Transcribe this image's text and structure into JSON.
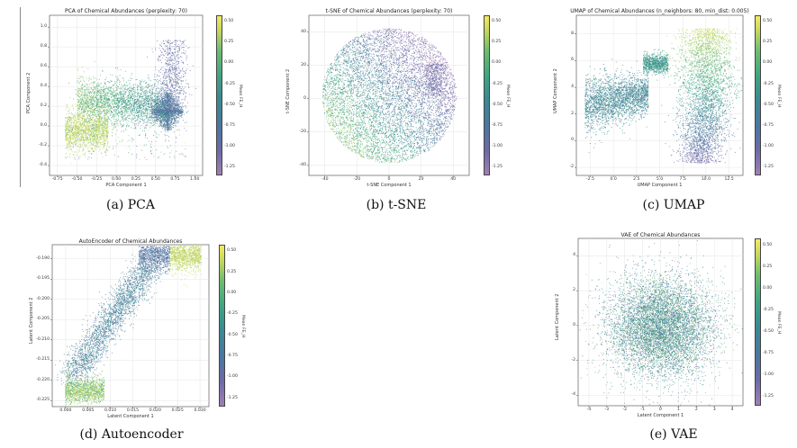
{
  "colorbar": {
    "label": "Mean FE_H",
    "ticks": [
      "0.50",
      "0.25",
      "0.00",
      "-0.25",
      "-0.50",
      "-0.75",
      "-1.00",
      "-1.25"
    ],
    "values": [
      0.5,
      0.25,
      0.0,
      -0.25,
      -0.5,
      -0.75,
      -1.0,
      -1.25
    ],
    "range": [
      -1.35,
      0.58
    ],
    "colors": [
      "#a07fb2",
      "#6d6aa8",
      "#4b76a0",
      "#3a8a92",
      "#3ea482",
      "#6cbd6f",
      "#c2d65c",
      "#f5ea60"
    ]
  },
  "chart_data": [
    {
      "id": "pca",
      "type": "scatter",
      "title": "PCA of Chemical Abundances (perplexity: 70)",
      "xlabel": "PCA Component 1",
      "ylabel": "PCA Component 2",
      "xticks": [
        "-0.75",
        "-0.50",
        "-0.25",
        "0.00",
        "0.25",
        "0.50",
        "0.75",
        "1.00"
      ],
      "xtick_values": [
        -0.75,
        -0.5,
        -0.25,
        0.0,
        0.25,
        0.5,
        0.75,
        1.0
      ],
      "yticks": [
        "1.0",
        "0.8",
        "0.6",
        "0.4",
        "0.2",
        "0.0",
        "-0.2",
        "-0.4"
      ],
      "ytick_values": [
        1.0,
        0.8,
        0.6,
        0.4,
        0.2,
        0.0,
        -0.2,
        -0.4
      ],
      "xlim": [
        -0.85,
        1.1
      ],
      "ylim": [
        -0.5,
        1.12
      ],
      "grid": true,
      "caption": "(a) PCA"
    },
    {
      "id": "tsne",
      "type": "scatter",
      "title": "t-SNE of Chemical Abundances (perplexity: 70)",
      "xlabel": "t-SNE Component 1",
      "ylabel": "t-SNE Component 2",
      "xticks": [
        "-40",
        "-20",
        "0",
        "20",
        "40"
      ],
      "xtick_values": [
        -40,
        -20,
        0,
        20,
        40
      ],
      "yticks": [
        "40",
        "20",
        "0",
        "-20",
        "-40"
      ],
      "ytick_values": [
        40,
        20,
        0,
        -20,
        -40
      ],
      "xlim": [
        -50,
        50
      ],
      "ylim": [
        -46,
        50
      ],
      "grid": true,
      "caption": "(b) t-SNE"
    },
    {
      "id": "umap",
      "type": "scatter",
      "title": "UMAP of Chemical Abundances (n_neighbors: 80, min_dist: 0.005)",
      "xlabel": "UMAP Component 1",
      "ylabel": "UMAP Component 2",
      "xticks": [
        "-2.5",
        "0.0",
        "2.5",
        "5.0",
        "7.5",
        "10.0",
        "12.5"
      ],
      "xtick_values": [
        -2.5,
        0,
        2.5,
        5,
        7.5,
        10,
        12.5
      ],
      "yticks": [
        "8",
        "6",
        "4",
        "2",
        "0",
        "-2"
      ],
      "ytick_values": [
        8,
        6,
        4,
        2,
        0,
        -2
      ],
      "xlim": [
        -4,
        14
      ],
      "ylim": [
        -2.6,
        9.4
      ],
      "grid": true,
      "caption": "(c) UMAP"
    },
    {
      "id": "autoencoder",
      "type": "scatter",
      "title": "AutoEncoder of Chemical Abundances",
      "xlabel": "Latent Component 1",
      "ylabel": "Latent Component 2",
      "xticks": [
        "0.000",
        "0.005",
        "0.010",
        "0.015",
        "0.020",
        "0.025",
        "0.030"
      ],
      "xtick_values": [
        0.0,
        0.005,
        0.01,
        0.015,
        0.02,
        0.025,
        0.03
      ],
      "yticks": [
        "-0.190",
        "-0.195",
        "-0.200",
        "-0.205",
        "-0.210",
        "-0.215",
        "-0.220",
        "-0.225"
      ],
      "ytick_values": [
        -0.19,
        -0.195,
        -0.2,
        -0.205,
        -0.21,
        -0.215,
        -0.22,
        -0.225
      ],
      "xlim": [
        -0.003,
        0.032
      ],
      "ylim": [
        -0.2265,
        -0.1865
      ],
      "grid": true,
      "caption": "(d) Autoencoder"
    },
    {
      "id": "vae",
      "type": "scatter",
      "title": "VAE of Chemical Abundances",
      "xlabel": "Latent Component 1",
      "ylabel": "Latent Component 2",
      "xticks": [
        "-4",
        "-3",
        "-2",
        "-1",
        "0",
        "1",
        "2",
        "3",
        "4"
      ],
      "xtick_values": [
        -4,
        -3,
        -2,
        -1,
        0,
        1,
        2,
        3,
        4
      ],
      "yticks": [
        "4",
        "2",
        "0",
        "-2",
        "-4"
      ],
      "ytick_values": [
        4,
        2,
        0,
        -2,
        -4
      ],
      "xlim": [
        -4.6,
        4.6
      ],
      "ylim": [
        -4.6,
        5.0
      ],
      "grid": true,
      "caption": "(e) VAE"
    }
  ]
}
